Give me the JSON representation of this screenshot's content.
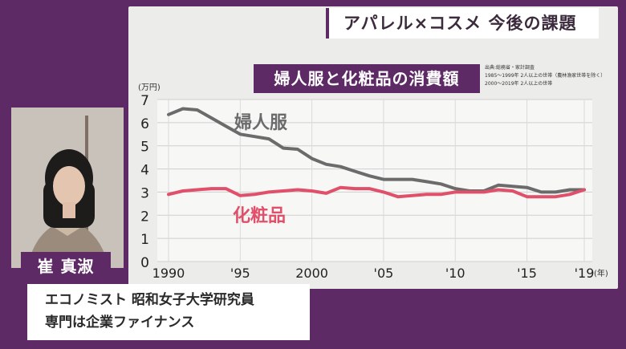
{
  "corner_title": "アパレル×コスメ 今後の課題",
  "chart_title": "婦人服と化粧品の消費額",
  "source_lines": [
    "出典:総務省・家計調査",
    "1985～1999年 2人以上の世帯（農林漁家世帯を除く）",
    "2000～2019年 2人以上の世帯"
  ],
  "person": {
    "name": "崔 真淑",
    "title_line1": "エコノミスト 昭和女子大学研究員",
    "title_line2": "専門は企業ファイナンス"
  },
  "colors": {
    "background": "#5e2a66",
    "panel": "#ececea",
    "series_womens_clothing": "#6b6b6b",
    "series_cosmetics": "#e0506a"
  },
  "chart_data": {
    "type": "line",
    "ylabel": "(万円)",
    "xlabel": "(年)",
    "ylim": [
      0,
      7
    ],
    "xlim": [
      1990,
      2019
    ],
    "yticks": [
      "0",
      "1",
      "2",
      "3",
      "4",
      "5",
      "6",
      "7"
    ],
    "xticks": [
      {
        "value": 1990,
        "label": "1990"
      },
      {
        "value": 1995,
        "label": "'95"
      },
      {
        "value": 2000,
        "label": "2000"
      },
      {
        "value": 2005,
        "label": "'05"
      },
      {
        "value": 2010,
        "label": "'10"
      },
      {
        "value": 2015,
        "label": "'15"
      },
      {
        "value": 2019,
        "label": "'19"
      }
    ],
    "grid": true,
    "x": [
      1990,
      1991,
      1992,
      1993,
      1994,
      1995,
      1996,
      1997,
      1998,
      1999,
      2000,
      2001,
      2002,
      2003,
      2004,
      2005,
      2006,
      2007,
      2008,
      2009,
      2010,
      2011,
      2012,
      2013,
      2014,
      2015,
      2016,
      2017,
      2018,
      2019
    ],
    "series": [
      {
        "name": "婦人服",
        "color": "#6b6b6b",
        "values": [
          6.35,
          6.6,
          6.55,
          6.2,
          5.85,
          5.5,
          5.4,
          5.3,
          4.9,
          4.85,
          4.45,
          4.2,
          4.1,
          3.9,
          3.7,
          3.55,
          3.55,
          3.55,
          3.45,
          3.35,
          3.15,
          3.05,
          3.05,
          3.3,
          3.25,
          3.2,
          3.0,
          3.0,
          3.1,
          3.1
        ]
      },
      {
        "name": "化粧品",
        "color": "#e0506a",
        "values": [
          2.9,
          3.05,
          3.1,
          3.15,
          3.15,
          2.85,
          2.9,
          3.0,
          3.05,
          3.1,
          3.05,
          2.95,
          3.2,
          3.15,
          3.15,
          3.0,
          2.8,
          2.85,
          2.9,
          2.9,
          3.0,
          3.0,
          3.0,
          3.1,
          3.05,
          2.8,
          2.8,
          2.8,
          2.9,
          3.1
        ]
      }
    ]
  }
}
